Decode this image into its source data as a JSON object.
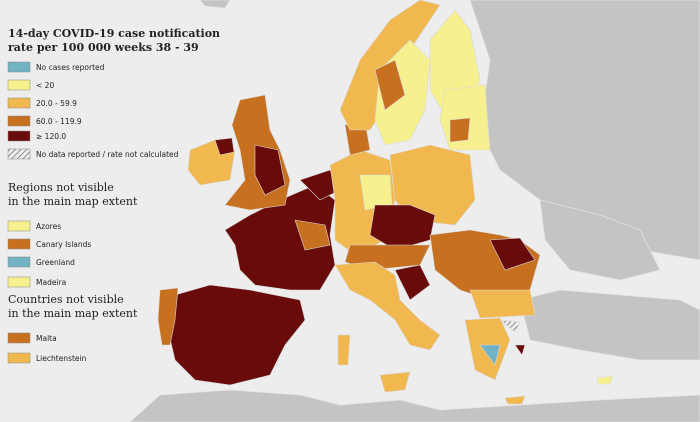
{
  "title_lines": [
    "14-day COVID-19 case notification",
    "rate per 100 000 weeks 38 - 39"
  ],
  "legend": [
    {
      "label": "No cases reported",
      "color": "#72b3c3"
    },
    {
      "label": "< 20",
      "color": "#f6f08e"
    },
    {
      "label": "20.0 - 59.9",
      "color": "#f1b84f"
    },
    {
      "label": "60.0 - 119.9",
      "color": "#c7701f"
    },
    {
      "label": "≥ 120.0",
      "color": "#6a0b0b"
    },
    {
      "label": "No data reported / rate not calculated",
      "color": "#9a9a9a"
    }
  ],
  "regions": {
    "heading": [
      "Regions not visible",
      "in the main map extent"
    ],
    "items": [
      {
        "label": "Azores",
        "color": "#f6f08e"
      },
      {
        "label": "Canary Islands",
        "color": "#c7701f"
      },
      {
        "label": "Greenland",
        "color": "#72b3c3"
      },
      {
        "label": "Madeira",
        "color": "#f6f08e"
      }
    ]
  },
  "countries": {
    "heading": [
      "Countries not visible",
      "in the main map extent"
    ],
    "items": [
      {
        "label": "Malta",
        "color": "#c7701f"
      },
      {
        "label": "Liechtenstein",
        "color": "#f1b84f"
      }
    ]
  }
}
